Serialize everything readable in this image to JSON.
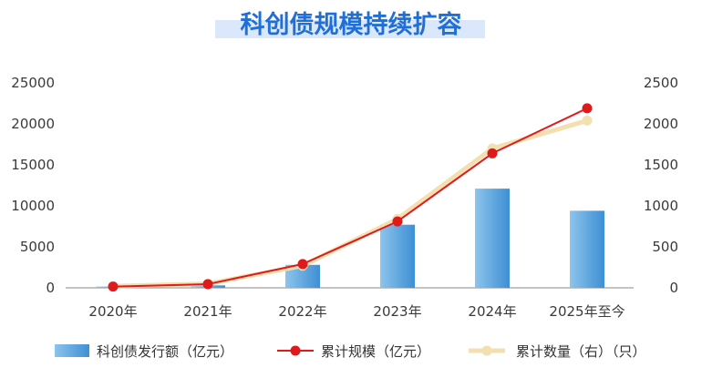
{
  "chart_data": {
    "type": "bar",
    "title": "科创债规模持续扩容",
    "categories": [
      "2020年",
      "2021年",
      "2022年",
      "2023年",
      "2024年",
      "2025年至今"
    ],
    "y_left": {
      "ticks": [
        "25000",
        "20000",
        "15000",
        "10000",
        "5000",
        "0"
      ],
      "range": [
        0,
        25000
      ]
    },
    "y_right": {
      "ticks": [
        "2500",
        "2000",
        "1500",
        "1000",
        "500",
        "0"
      ],
      "range": [
        0,
        2500
      ]
    },
    "series": [
      {
        "name": "科创债发行额（亿元）",
        "type": "bar",
        "axis": "left",
        "values": [
          150,
          300,
          2800,
          7700,
          12100,
          9400
        ]
      },
      {
        "name": "累计规模（亿元）",
        "type": "line",
        "axis": "left",
        "values": [
          150,
          450,
          2900,
          8100,
          16400,
          21900
        ]
      },
      {
        "name": "累计数量（右）（只）",
        "type": "line",
        "axis": "right",
        "values": [
          20,
          50,
          270,
          840,
          1700,
          2040
        ]
      }
    ],
    "colors": {
      "title": "#1f6fd6",
      "title_highlight": "#dbe8fb",
      "bar_top": "#8cc4ec",
      "bar_bottom": "#3f8fd4",
      "line_scale": "#e01a1a",
      "line_count": "#f3dfb0",
      "axis": "#8a8a8a"
    },
    "legend": {
      "position": "bottom"
    },
    "grid": false
  }
}
